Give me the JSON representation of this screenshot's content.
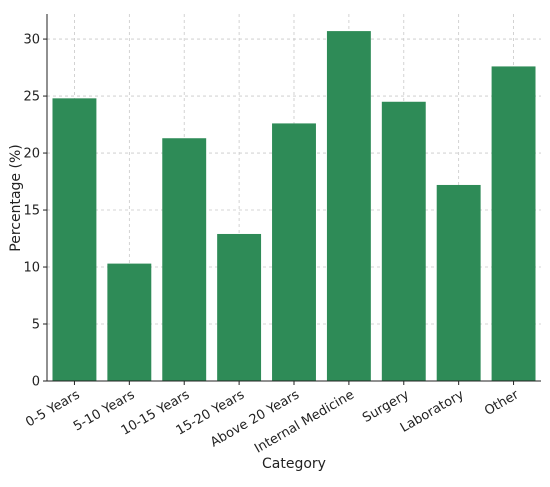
{
  "chart_data": {
    "type": "bar",
    "title": "",
    "xlabel": "Category",
    "ylabel": "Percentage (%)",
    "categories": [
      "0-5 Years",
      "5-10 Years",
      "10-15 Years",
      "15-20 Years",
      "Above 20 Years",
      "Internal Medicine",
      "Surgery",
      "Laboratory",
      "Other"
    ],
    "values": [
      24.8,
      10.3,
      21.3,
      12.9,
      22.6,
      30.7,
      24.5,
      17.2,
      27.6
    ],
    "ylim": [
      0,
      32.2
    ],
    "yticks": [
      0,
      5,
      10,
      15,
      20,
      25,
      30
    ],
    "grid": true,
    "bar_color": "#2e8b57",
    "grid_color": "#c8c8c8",
    "axis_color": "#222222"
  }
}
